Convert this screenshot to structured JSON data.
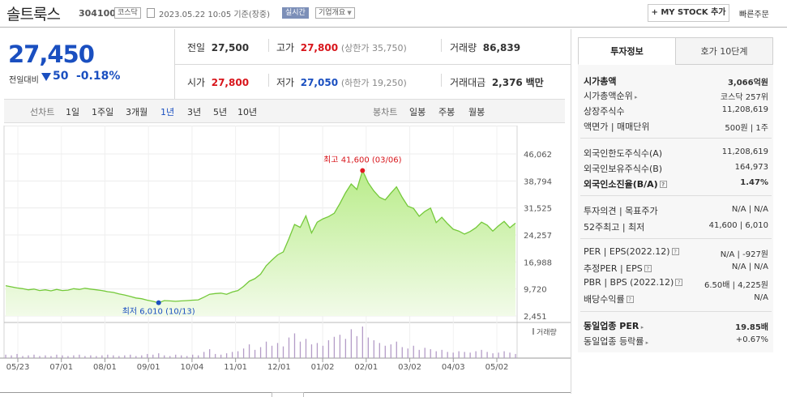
{
  "header": {
    "name": "솔트룩스",
    "code": "304100",
    "market": "코스닥",
    "date": "2023.05.22 10:05 기준(장중)",
    "live": "실시간",
    "corp_info": "기업개요",
    "my_stock": "MY STOCK 추가",
    "quick_order": "빠른주문"
  },
  "price": {
    "current": "27,450",
    "change_label": "전일대비",
    "change": "50",
    "rate": "-0.18%"
  },
  "summary": {
    "prev_label": "전일",
    "prev": "27,500",
    "high_label": "고가",
    "high": "27,800",
    "upper_limit": "(상한가 35,750)",
    "volume_label": "거래량",
    "volume": "86,839",
    "open_label": "시가",
    "open": "27,800",
    "low_label": "저가",
    "low": "27,050",
    "lower_limit": "(하한가 19,250)",
    "amount_label": "거래대금",
    "amount": "2,376",
    "amount_unit": "백만"
  },
  "tabs": {
    "line_label": "선차트",
    "periods": [
      "1일",
      "1주일",
      "3개월",
      "1년",
      "3년",
      "5년",
      "10년"
    ],
    "active": "1년",
    "candle_label": "봉차트",
    "candles": [
      "일봉",
      "주봉",
      "월봉"
    ]
  },
  "right_tabs": [
    "투자정보",
    "호가 10단계"
  ],
  "invest": {
    "market_cap_label": "시가총액",
    "market_cap": "3,066억원",
    "rank_label": "시가총액순위",
    "rank": "코스닥 257위",
    "shares_label": "상장주식수",
    "shares": "11,208,619",
    "par_label": "액면가 | 매매단위",
    "par": "500원 | 1주",
    "foreign_limit_label": "외국인한도주식수(A)",
    "foreign_limit": "11,208,619",
    "foreign_hold_label": "외국인보유주식수(B)",
    "foreign_hold": "164,973",
    "foreign_rate_label": "외국인소진율(B/A)",
    "foreign_rate": "1.47%",
    "opinion_label": "투자의견 | 목표주가",
    "opinion": "N/A | N/A",
    "w52_label": "52주최고 | 최저",
    "w52": "41,600 | 6,010",
    "per_label": "PER | EPS(2022.12)",
    "per": "N/A | -927원",
    "est_per_label": "추정PER | EPS",
    "est_per": "N/A | N/A",
    "pbr_label": "PBR | BPS (2022.12)",
    "pbr": "6.50배 | 4,225원",
    "div_label": "배당수익률",
    "div": "N/A",
    "ind_per_label": "동일업종 PER",
    "ind_per": "19.85배",
    "ind_rate_label": "동일업종 등락률",
    "ind_rate": "+0.67%"
  },
  "chart_data": {
    "type": "area",
    "x_ticks": [
      "05/23",
      "07/01",
      "08/01",
      "09/01",
      "10/04",
      "11/01",
      "12/01",
      "01/02",
      "02/01",
      "03/02",
      "04/03",
      "05/02"
    ],
    "y_ticks": [
      46062,
      38794,
      31525,
      24257,
      16988,
      9720,
      2451
    ],
    "ylim": [
      2451,
      46062
    ],
    "volume_label": "거래량",
    "high_label": "최고 41,600 (03/06)",
    "low_label": "최저 6,010 (10/13)",
    "high": {
      "x": "03/06",
      "y": 41600
    },
    "low": {
      "x": "10/13",
      "y": 6010
    },
    "series_close": [
      10600,
      10300,
      10000,
      9800,
      9500,
      9700,
      9300,
      9500,
      9200,
      9600,
      9300,
      9400,
      9800,
      9600,
      9900,
      9700,
      9500,
      9300,
      9000,
      8800,
      8400,
      8100,
      7700,
      7300,
      7100,
      6700,
      6400,
      6010,
      6600,
      6500,
      6400,
      6500,
      6600,
      6700,
      6800,
      7500,
      8300,
      8500,
      8600,
      8300,
      8900,
      9300,
      10400,
      11800,
      12500,
      13700,
      16000,
      17500,
      18900,
      19700,
      23200,
      27100,
      26300,
      29400,
      24800,
      27700,
      28600,
      29200,
      30100,
      32700,
      35600,
      38000,
      36500,
      41600,
      38300,
      36100,
      34400,
      33700,
      35500,
      37200,
      34400,
      32000,
      31400,
      29300,
      30600,
      31500,
      27600,
      29000,
      27300,
      25800,
      25300,
      24500,
      25200,
      26200,
      27700,
      26900,
      25300,
      26700,
      27900,
      26200,
      27450
    ],
    "volume": [
      5,
      4,
      6,
      3,
      4,
      5,
      3,
      4,
      3,
      5,
      4,
      3,
      4,
      5,
      3,
      4,
      3,
      4,
      5,
      4,
      3,
      4,
      5,
      3,
      4,
      6,
      5,
      7,
      4,
      3,
      5,
      4,
      3,
      5,
      4,
      9,
      13,
      6,
      5,
      7,
      9,
      10,
      14,
      20,
      12,
      16,
      24,
      18,
      22,
      17,
      30,
      36,
      24,
      28,
      20,
      22,
      18,
      26,
      31,
      34,
      28,
      42,
      32,
      46,
      30,
      26,
      22,
      18,
      20,
      24,
      16,
      14,
      18,
      12,
      15,
      13,
      10,
      12,
      9,
      8,
      10,
      9,
      8,
      10,
      12,
      9,
      7,
      8,
      10,
      8,
      6
    ]
  }
}
